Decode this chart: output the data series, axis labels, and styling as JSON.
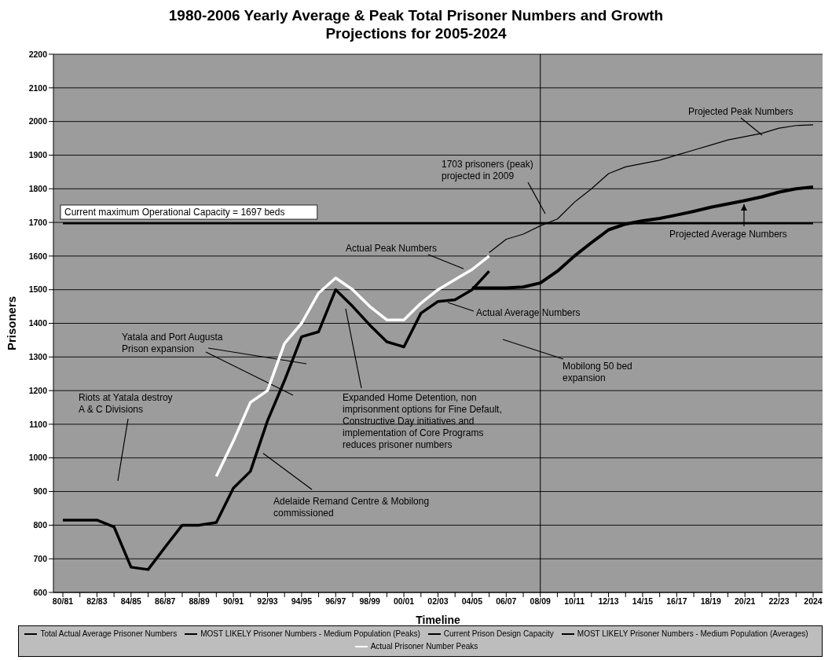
{
  "chart_data": {
    "type": "line",
    "title": "1980-2006 Yearly Average & Peak Total Prisoner Numbers and Growth Projections for 2005-2024",
    "xlabel": "Timeline",
    "ylabel": "Prisoners",
    "categories": [
      "80/81",
      null,
      "82/83",
      null,
      "84/85",
      null,
      "86/87",
      null,
      "88/89",
      null,
      "90/91",
      null,
      "92/93",
      null,
      "94/95",
      null,
      "96/97",
      null,
      "98/99",
      null,
      "00/01",
      null,
      "02/03",
      null,
      "04/05",
      null,
      "06/07",
      null,
      "08/09",
      null,
      "10/11",
      null,
      "12/13",
      null,
      "14/15",
      null,
      "16/17",
      null,
      "18/19",
      null,
      "20/21",
      null,
      "22/23",
      null,
      "2024"
    ],
    "series": [
      {
        "name": "Total Actual Average Prisoner Numbers",
        "color": "#000000",
        "values": [
          815,
          815,
          815,
          795,
          675,
          668,
          735,
          800,
          800,
          808,
          910,
          960,
          1110,
          1230,
          1360,
          1375,
          1500,
          1450,
          1395,
          1345,
          1330,
          1430,
          1465,
          1470,
          1500,
          1555,
          null,
          null,
          null,
          null,
          null,
          null,
          null,
          null,
          null,
          null,
          null,
          null,
          null,
          null,
          null,
          null,
          null,
          null,
          null
        ]
      },
      {
        "name": "MOST LIKELY Prisoner Numbers - Medium Population (Peaks)",
        "color": "#000000",
        "values": [
          null,
          null,
          null,
          null,
          null,
          null,
          null,
          null,
          null,
          null,
          null,
          null,
          null,
          null,
          null,
          null,
          null,
          null,
          null,
          null,
          null,
          null,
          null,
          null,
          null,
          1610,
          1650,
          1665,
          1690,
          1710,
          1760,
          1800,
          1845,
          1865,
          1875,
          1885,
          1900,
          1915,
          1930,
          1945,
          1955,
          1965,
          1980,
          1988,
          1990
        ]
      },
      {
        "name": "Current Prison Design Capacity",
        "color": "#000000",
        "values": [
          1697,
          1697,
          1697,
          1697,
          1697,
          1697,
          1697,
          1697,
          1697,
          1697,
          1697,
          1697,
          1697,
          1697,
          1697,
          1697,
          1697,
          1697,
          1697,
          1697,
          1697,
          1697,
          1697,
          1697,
          1697,
          1697,
          1697,
          1697,
          1697,
          1697,
          1697,
          1697,
          1697,
          1697,
          1697,
          1697,
          1697,
          1697,
          1697,
          1697,
          1697,
          1697,
          1697,
          1697,
          1697
        ]
      },
      {
        "name": "MOST LIKELY Prisoner Numbers - Medium Population (Averages)",
        "color": "#000000",
        "values": [
          null,
          null,
          null,
          null,
          null,
          null,
          null,
          null,
          null,
          null,
          null,
          null,
          null,
          null,
          null,
          null,
          null,
          null,
          null,
          null,
          null,
          null,
          null,
          null,
          1505,
          1505,
          1505,
          1508,
          1520,
          1555,
          1600,
          1640,
          1678,
          1695,
          1705,
          1712,
          1722,
          1733,
          1745,
          1755,
          1765,
          1776,
          1790,
          1800,
          1805
        ]
      },
      {
        "name": "Actual Prisoner Number Peaks",
        "color": "#ffffff",
        "values": [
          null,
          null,
          null,
          null,
          null,
          null,
          null,
          null,
          null,
          945,
          1050,
          1165,
          1200,
          1340,
          1400,
          1490,
          1535,
          1500,
          1450,
          1410,
          1410,
          1460,
          1500,
          1530,
          1560,
          1600,
          null,
          null,
          null,
          null,
          null,
          null,
          null,
          null,
          null,
          null,
          null,
          null,
          null,
          null,
          null,
          null,
          null,
          null,
          null
        ]
      }
    ],
    "ylim": [
      600,
      2200
    ],
    "yticks": [
      600,
      700,
      800,
      900,
      1000,
      1100,
      1200,
      1300,
      1400,
      1500,
      1600,
      1700,
      1800,
      1900,
      2000,
      2100,
      2200
    ],
    "grid": "y",
    "legend": "bottom",
    "marker": "none",
    "ref_lines": [
      {
        "axis": "x",
        "value": "08/09",
        "color": "#000000"
      }
    ],
    "annotations": [
      "Riots at Yatala destroy A & C Divisions",
      "Yatala and Port Augusta Prison expansion",
      "Expanded Home Detention, non imprisonment options for Fine Default, Constructive Day initiatives and implementation of Core Programs reduces prisoner numbers",
      "Adelaide Remand Centre & Mobilong commissioned",
      "Actual Peak Numbers",
      "Actual Average Numbers",
      "Mobilong 50 bed expansion",
      "1703 prisoners (peak) projected in 2009",
      "Projected Peak Numbers",
      "Projected Average Numbers",
      "Current maximum Operational Capacity = 1697 beds"
    ]
  }
}
